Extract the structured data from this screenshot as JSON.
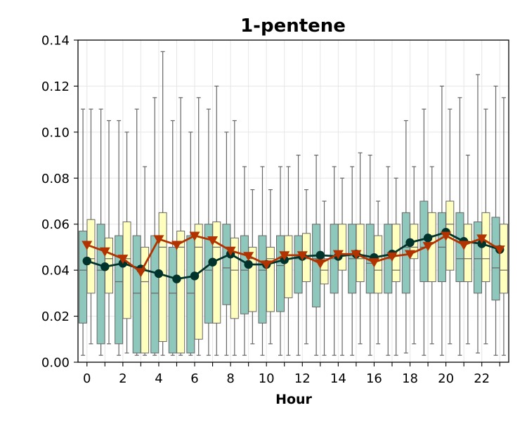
{
  "chart_data": {
    "type": "box",
    "title": "1-pentene",
    "xlabel": "Hour",
    "ylabel": "",
    "ylim": [
      0,
      0.14
    ],
    "xlim": [
      -0.5,
      23.5
    ],
    "grid": true,
    "x": [
      0,
      1,
      2,
      3,
      4,
      5,
      6,
      7,
      8,
      9,
      10,
      11,
      12,
      13,
      14,
      15,
      16,
      17,
      18,
      19,
      20,
      21,
      22,
      23
    ],
    "x_ticks": [
      0,
      2,
      4,
      6,
      8,
      10,
      12,
      14,
      16,
      18,
      20,
      22
    ],
    "y_ticks": [
      0.0,
      0.02,
      0.04,
      0.06,
      0.08,
      0.1,
      0.12,
      0.14
    ],
    "box_series": [
      {
        "color": "#8ec7bb",
        "boxes": [
          {
            "whislo": 0.003,
            "q1": 0.017,
            "med": 0.04,
            "q3": 0.057,
            "whishi": 0.11
          },
          {
            "whislo": 0.003,
            "q1": 0.008,
            "med": 0.04,
            "q3": 0.06,
            "whishi": 0.11
          },
          {
            "whislo": 0.003,
            "q1": 0.008,
            "med": 0.035,
            "q3": 0.055,
            "whishi": 0.105
          },
          {
            "whislo": 0.003,
            "q1": 0.004,
            "med": 0.03,
            "q3": 0.055,
            "whishi": 0.11
          },
          {
            "whislo": 0.003,
            "q1": 0.004,
            "med": 0.03,
            "q3": 0.055,
            "whishi": 0.115
          },
          {
            "whislo": 0.003,
            "q1": 0.004,
            "med": 0.03,
            "q3": 0.05,
            "whishi": 0.105
          },
          {
            "whislo": 0.003,
            "q1": 0.004,
            "med": 0.03,
            "q3": 0.055,
            "whishi": 0.1
          },
          {
            "whislo": 0.003,
            "q1": 0.017,
            "med": 0.04,
            "q3": 0.06,
            "whishi": 0.11
          },
          {
            "whislo": 0.003,
            "q1": 0.025,
            "med": 0.041,
            "q3": 0.06,
            "whishi": 0.1
          },
          {
            "whislo": 0.003,
            "q1": 0.021,
            "med": 0.04,
            "q3": 0.055,
            "whishi": 0.085
          },
          {
            "whislo": 0.003,
            "q1": 0.017,
            "med": 0.04,
            "q3": 0.055,
            "whishi": 0.085
          },
          {
            "whislo": 0.003,
            "q1": 0.022,
            "med": 0.042,
            "q3": 0.055,
            "whishi": 0.085
          },
          {
            "whislo": 0.003,
            "q1": 0.03,
            "med": 0.045,
            "q3": 0.055,
            "whishi": 0.09
          },
          {
            "whislo": 0.003,
            "q1": 0.024,
            "med": 0.045,
            "q3": 0.06,
            "whishi": 0.09
          },
          {
            "whislo": 0.003,
            "q1": 0.03,
            "med": 0.045,
            "q3": 0.06,
            "whishi": 0.085
          },
          {
            "whislo": 0.003,
            "q1": 0.03,
            "med": 0.045,
            "q3": 0.06,
            "whishi": 0.085
          },
          {
            "whislo": 0.003,
            "q1": 0.03,
            "med": 0.043,
            "q3": 0.06,
            "whishi": 0.09
          },
          {
            "whislo": 0.003,
            "q1": 0.03,
            "med": 0.045,
            "q3": 0.06,
            "whishi": 0.085
          },
          {
            "whislo": 0.004,
            "q1": 0.03,
            "med": 0.05,
            "q3": 0.065,
            "whishi": 0.105
          },
          {
            "whislo": 0.003,
            "q1": 0.035,
            "med": 0.05,
            "q3": 0.07,
            "whishi": 0.11
          },
          {
            "whislo": 0.003,
            "q1": 0.035,
            "med": 0.05,
            "q3": 0.065,
            "whishi": 0.12
          },
          {
            "whislo": 0.003,
            "q1": 0.035,
            "med": 0.045,
            "q3": 0.065,
            "whishi": 0.115
          },
          {
            "whislo": 0.004,
            "q1": 0.03,
            "med": 0.045,
            "q3": 0.061,
            "whishi": 0.125
          },
          {
            "whislo": 0.003,
            "q1": 0.027,
            "med": 0.041,
            "q3": 0.063,
            "whishi": 0.12
          }
        ]
      },
      {
        "color": "#ffffbe",
        "boxes": [
          {
            "whislo": 0.008,
            "q1": 0.03,
            "med": 0.045,
            "q3": 0.062,
            "whishi": 0.11
          },
          {
            "whislo": 0.008,
            "q1": 0.03,
            "med": 0.045,
            "q3": 0.054,
            "whishi": 0.105
          },
          {
            "whislo": 0.004,
            "q1": 0.019,
            "med": 0.045,
            "q3": 0.061,
            "whishi": 0.1
          },
          {
            "whislo": 0.003,
            "q1": 0.004,
            "med": 0.035,
            "q3": 0.05,
            "whishi": 0.085
          },
          {
            "whislo": 0.003,
            "q1": 0.009,
            "med": 0.05,
            "q3": 0.065,
            "whishi": 0.135
          },
          {
            "whislo": 0.003,
            "q1": 0.004,
            "med": 0.05,
            "q3": 0.057,
            "whishi": 0.115
          },
          {
            "whislo": 0.003,
            "q1": 0.01,
            "med": 0.05,
            "q3": 0.06,
            "whishi": 0.115
          },
          {
            "whislo": 0.003,
            "q1": 0.017,
            "med": 0.05,
            "q3": 0.061,
            "whishi": 0.12
          },
          {
            "whislo": 0.003,
            "q1": 0.019,
            "med": 0.04,
            "q3": 0.054,
            "whishi": 0.105
          },
          {
            "whislo": 0.008,
            "q1": 0.022,
            "med": 0.045,
            "q3": 0.05,
            "whishi": 0.075
          },
          {
            "whislo": 0.008,
            "q1": 0.022,
            "med": 0.045,
            "q3": 0.05,
            "whishi": 0.075
          },
          {
            "whislo": 0.003,
            "q1": 0.028,
            "med": 0.045,
            "q3": 0.055,
            "whishi": 0.085
          },
          {
            "whislo": 0.008,
            "q1": 0.035,
            "med": 0.045,
            "q3": 0.056,
            "whishi": 0.075
          },
          {
            "whislo": 0.003,
            "q1": 0.034,
            "med": 0.04,
            "q3": 0.045,
            "whishi": 0.07
          },
          {
            "whislo": 0.003,
            "q1": 0.04,
            "med": 0.047,
            "q3": 0.06,
            "whishi": 0.08
          },
          {
            "whislo": 0.008,
            "q1": 0.035,
            "med": 0.045,
            "q3": 0.06,
            "whishi": 0.091
          },
          {
            "whislo": 0.008,
            "q1": 0.03,
            "med": 0.04,
            "q3": 0.055,
            "whishi": 0.07
          },
          {
            "whislo": 0.003,
            "q1": 0.035,
            "med": 0.04,
            "q3": 0.06,
            "whishi": 0.08
          },
          {
            "whislo": 0.008,
            "q1": 0.045,
            "med": 0.05,
            "q3": 0.06,
            "whishi": 0.085
          },
          {
            "whislo": 0.008,
            "q1": 0.035,
            "med": 0.055,
            "q3": 0.065,
            "whishi": 0.085
          },
          {
            "whislo": 0.008,
            "q1": 0.04,
            "med": 0.06,
            "q3": 0.07,
            "whishi": 0.11
          },
          {
            "whislo": 0.008,
            "q1": 0.035,
            "med": 0.045,
            "q3": 0.06,
            "whishi": 0.09
          },
          {
            "whislo": 0.008,
            "q1": 0.035,
            "med": 0.045,
            "q3": 0.065,
            "whishi": 0.11
          },
          {
            "whislo": 0.003,
            "q1": 0.03,
            "med": 0.04,
            "q3": 0.06,
            "whishi": 0.115
          }
        ]
      }
    ],
    "line_series": [
      {
        "color": "#00332b",
        "marker": "circle",
        "values": [
          0.044,
          0.0415,
          0.043,
          0.0405,
          0.0385,
          0.0362,
          0.0375,
          0.0435,
          0.047,
          0.0425,
          0.0425,
          0.0445,
          0.046,
          0.0465,
          0.046,
          0.047,
          0.0455,
          0.047,
          0.052,
          0.054,
          0.0565,
          0.0525,
          0.0515,
          0.049
        ]
      },
      {
        "color": "#b23200",
        "marker": "triangle-down",
        "values": [
          0.051,
          0.0482,
          0.045,
          0.0392,
          0.0535,
          0.051,
          0.055,
          0.053,
          0.0485,
          0.0462,
          0.0425,
          0.0465,
          0.0465,
          0.043,
          0.047,
          0.047,
          0.0435,
          0.046,
          0.047,
          0.0505,
          0.055,
          0.051,
          0.0538,
          0.049
        ]
      }
    ]
  }
}
